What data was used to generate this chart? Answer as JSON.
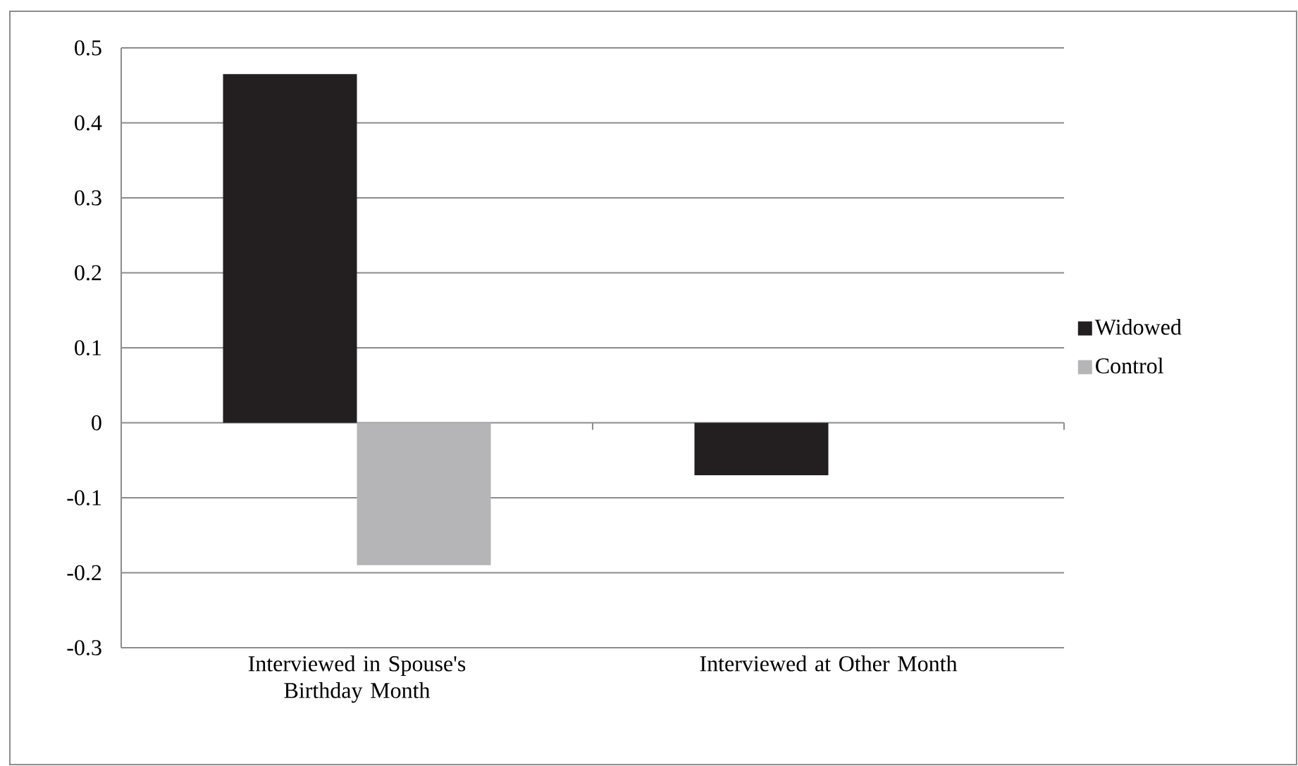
{
  "chart_data": {
    "type": "bar",
    "categories": [
      "Interviewed in Spouse's Birthday Month",
      "Interviewed at Other Month"
    ],
    "series": [
      {
        "name": "Widowed",
        "color": "#231f20",
        "values": [
          0.465,
          -0.07
        ]
      },
      {
        "name": "Control",
        "color": "#b5b5b8",
        "values": [
          -0.19,
          0
        ]
      }
    ],
    "ylim": [
      -0.3,
      0.5
    ],
    "yticks": [
      -0.3,
      -0.2,
      -0.1,
      0,
      0.1,
      0.2,
      0.3,
      0.4,
      0.5
    ],
    "grid": "y",
    "legend": "right"
  }
}
